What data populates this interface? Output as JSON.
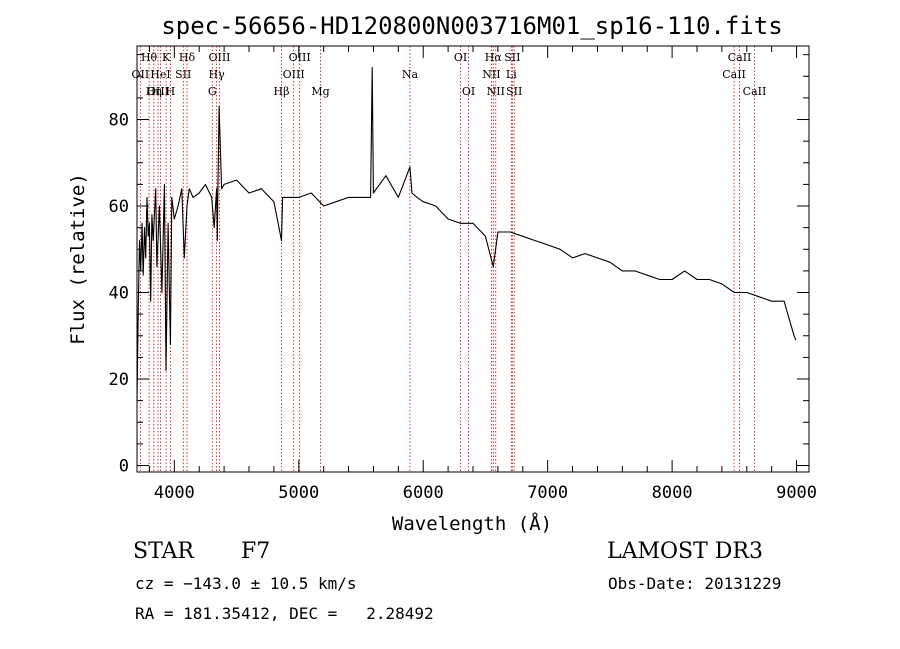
{
  "chart_data": {
    "type": "line",
    "title": "spec-56656-HD120800N003716M01_sp16-110.fits",
    "xlabel": "Wavelength (Å)",
    "ylabel": "Flux (relative)",
    "xlim": [
      3700,
      9100
    ],
    "ylim": [
      -1.5,
      97
    ],
    "x_ticks": [
      4000,
      5000,
      6000,
      7000,
      8000,
      9000
    ],
    "y_ticks": [
      0,
      20,
      40,
      60,
      80
    ],
    "x_tick_labels": [
      "4000",
      "5000",
      "6000",
      "7000",
      "8000",
      "9000"
    ],
    "y_tick_labels": [
      "0",
      "20",
      "40",
      "60",
      "80"
    ],
    "series": [
      {
        "name": "flux",
        "x": [
          3700,
          3710,
          3720,
          3730,
          3740,
          3750,
          3760,
          3770,
          3780,
          3790,
          3800,
          3810,
          3820,
          3830,
          3850,
          3860,
          3880,
          3900,
          3920,
          3933,
          3950,
          3968,
          3980,
          4000,
          4030,
          4060,
          4080,
          4102,
          4120,
          4150,
          4200,
          4250,
          4300,
          4320,
          4340,
          4345,
          4350,
          4360,
          4380,
          4400,
          4500,
          4600,
          4700,
          4800,
          4861,
          4870,
          4900,
          5000,
          5100,
          5200,
          5300,
          5400,
          5500,
          5577,
          5590,
          5600,
          5700,
          5800,
          5893,
          5910,
          5950,
          6000,
          6100,
          6200,
          6300,
          6400,
          6500,
          6563,
          6600,
          6700,
          6800,
          6900,
          7000,
          7100,
          7200,
          7300,
          7400,
          7500,
          7600,
          7700,
          7800,
          7900,
          8000,
          8100,
          8200,
          8300,
          8400,
          8500,
          8600,
          8700,
          8800,
          8900,
          8950,
          8980,
          8995
        ],
        "values": [
          15,
          35,
          52,
          45,
          56,
          44,
          55,
          48,
          62,
          53,
          56,
          38,
          58,
          52,
          64,
          46,
          60,
          40,
          65,
          22,
          56,
          28,
          62,
          57,
          60,
          64,
          48,
          60,
          64,
          62,
          63,
          65,
          62,
          55,
          64,
          52,
          64,
          83,
          64,
          65,
          66,
          63,
          64,
          61,
          52,
          62,
          62,
          62,
          63,
          60,
          61,
          62,
          62,
          62,
          92,
          63,
          67,
          62,
          69,
          63,
          62,
          61,
          60,
          57,
          56,
          56,
          53,
          46,
          54,
          54,
          53,
          52,
          51,
          50,
          48,
          49,
          48,
          47,
          45,
          45,
          44,
          43,
          43,
          45,
          43,
          43,
          42,
          40,
          40,
          39,
          38,
          38,
          33,
          30,
          29
        ]
      }
    ],
    "line_markers": [
      {
        "label": "Hθ",
        "x": 3797,
        "row": 0
      },
      {
        "label": "OII",
        "x": 3727,
        "row": 1
      },
      {
        "label": "OIII",
        "x": 3869,
        "row": 2
      },
      {
        "label": "K",
        "x": 3934,
        "row": 0
      },
      {
        "label": "HeI",
        "x": 3889,
        "row": 1
      },
      {
        "label": "Hη",
        "x": 3835,
        "row": 2
      },
      {
        "label": "Hδ",
        "x": 4102,
        "row": 0
      },
      {
        "label": "SII",
        "x": 4072,
        "row": 1
      },
      {
        "label": "H",
        "x": 3969,
        "row": 2
      },
      {
        "label": "OIII",
        "x": 4363,
        "row": 0
      },
      {
        "label": "Hγ",
        "x": 4340,
        "row": 1
      },
      {
        "label": "G",
        "x": 4305,
        "row": 2
      },
      {
        "label": "OIII",
        "x": 5007,
        "row": 0
      },
      {
        "label": "OIII",
        "x": 4959,
        "row": 1
      },
      {
        "label": "Hβ",
        "x": 4861,
        "row": 2
      },
      {
        "label": "Mg",
        "x": 5175,
        "row": 2
      },
      {
        "label": "Na",
        "x": 5893,
        "row": 1
      },
      {
        "label": "OI",
        "x": 6300,
        "row": 0
      },
      {
        "label": "OI",
        "x": 6364,
        "row": 2
      },
      {
        "label": "Hα",
        "x": 6563,
        "row": 0
      },
      {
        "label": "SII",
        "x": 6716,
        "row": 0
      },
      {
        "label": "NII",
        "x": 6548,
        "row": 1
      },
      {
        "label": "Li",
        "x": 6708,
        "row": 1
      },
      {
        "label": "NII",
        "x": 6583,
        "row": 2
      },
      {
        "label": "SII",
        "x": 6731,
        "row": 2
      },
      {
        "label": "CaII",
        "x": 8542,
        "row": 0
      },
      {
        "label": "CaII",
        "x": 8498,
        "row": 1
      },
      {
        "label": "CaII",
        "x": 8662,
        "row": 2
      }
    ]
  },
  "info": {
    "object_class": "STAR",
    "subclass": "F7",
    "survey": "LAMOST DR3",
    "cz": "cz = −143.0 ± 10.5 km/s",
    "obs_date": "Obs-Date: 20131229",
    "coords": "RA = 181.35412, DEC =   2.28492"
  },
  "colors": {
    "line": "#000000",
    "marker": "#cc0000",
    "axes": "#000000"
  }
}
